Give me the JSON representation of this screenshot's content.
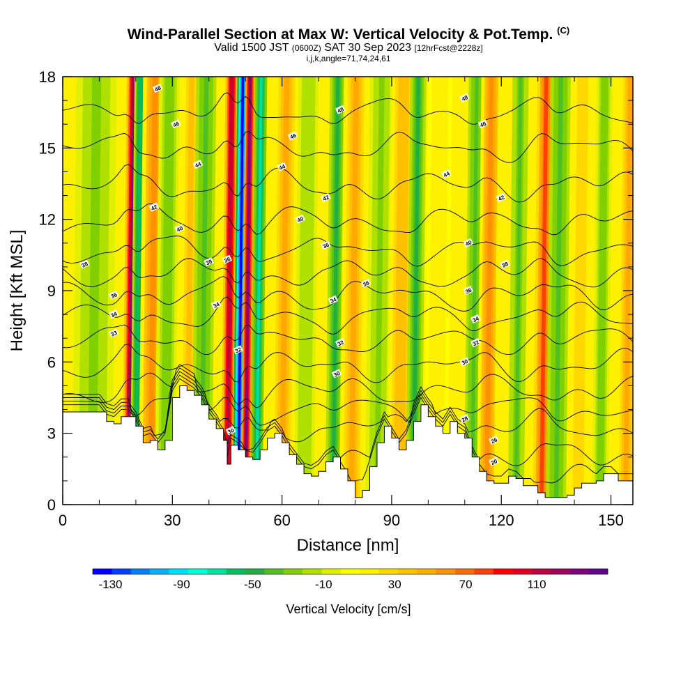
{
  "title": {
    "main": "Wind-Parallel Section at Max W: Vertical Velocity & Pot.Temp.",
    "copyright": "(C)",
    "valid_prefix": "Valid 1500 JST",
    "valid_z": "(0600Z)",
    "valid_date": "SAT 30 Sep 2023",
    "forecast": "[12hrFcst@2228z]",
    "params": "i,j,k,angle=71,74,24,61"
  },
  "chart_data": {
    "type": "heatmap",
    "xlabel": "Distance [nm]",
    "ylabel": "Height [Kft MSL]",
    "xlim": [
      0,
      156
    ],
    "ylim": [
      0,
      18
    ],
    "x_ticks": [
      "0",
      "30",
      "60",
      "90",
      "120",
      "150"
    ],
    "y_ticks": [
      "0",
      "3",
      "6",
      "9",
      "12",
      "15",
      "18"
    ],
    "colorbar": {
      "label": "Vertical Velocity [cm/s]",
      "tick_labels": [
        "-130",
        "-90",
        "-50",
        "-10",
        "30",
        "70",
        "110"
      ],
      "range": [
        -140,
        150
      ],
      "colors": [
        "#0000ff",
        "#0040ff",
        "#0080ff",
        "#00b0ff",
        "#00dcff",
        "#00ffd8",
        "#00e0a0",
        "#00c060",
        "#20b040",
        "#50c020",
        "#80d000",
        "#b0e000",
        "#e0f000",
        "#ffff00",
        "#fff000",
        "#ffd800",
        "#ffc000",
        "#ffa800",
        "#ff9000",
        "#ff6a00",
        "#ff4000",
        "#ff0000",
        "#e00020",
        "#c00040",
        "#a00060",
        "#800080",
        "#600090"
      ]
    },
    "theta_contour_labels": [
      "20",
      "26",
      "28",
      "30",
      "32",
      "34",
      "36",
      "38",
      "40",
      "42",
      "44",
      "46",
      "48"
    ],
    "velocity_bands": [
      {
        "x": 8,
        "w": 5,
        "value": -25
      },
      {
        "x": 18,
        "w": 1.6,
        "value": 120
      },
      {
        "x": 20,
        "w": 1.5,
        "value": -60
      },
      {
        "x": 24,
        "w": 3,
        "value": 60
      },
      {
        "x": 28,
        "w": 2.6,
        "value": -30
      },
      {
        "x": 34,
        "w": 3,
        "value": 35
      },
      {
        "x": 38,
        "w": 2.5,
        "value": -40
      },
      {
        "x": 45,
        "w": 1.6,
        "value": 110
      },
      {
        "x": 48,
        "w": 1.4,
        "value": -130
      },
      {
        "x": 50,
        "w": 1.2,
        "value": 130
      },
      {
        "x": 53,
        "w": 1.5,
        "value": -70
      },
      {
        "x": 60,
        "w": 3,
        "value": 45
      },
      {
        "x": 66,
        "w": 2.5,
        "value": -20
      },
      {
        "x": 74,
        "w": 2,
        "value": -50
      },
      {
        "x": 79,
        "w": 3,
        "value": 45
      },
      {
        "x": 86,
        "w": 3,
        "value": -25
      },
      {
        "x": 92,
        "w": 3,
        "value": 40
      },
      {
        "x": 96,
        "w": 2,
        "value": -45
      },
      {
        "x": 102,
        "w": 3,
        "value": 20
      },
      {
        "x": 112,
        "w": 2,
        "value": -40
      },
      {
        "x": 116,
        "w": 2.5,
        "value": 60
      },
      {
        "x": 124,
        "w": 2,
        "value": -35
      },
      {
        "x": 131,
        "w": 2.2,
        "value": 75
      },
      {
        "x": 135,
        "w": 2.5,
        "value": -40
      },
      {
        "x": 141,
        "w": 3,
        "value": 30
      },
      {
        "x": 147,
        "w": 2,
        "value": -30
      },
      {
        "x": 154,
        "w": 2.5,
        "value": 50
      }
    ],
    "terrain_kft": [
      [
        0,
        3.9
      ],
      [
        10,
        3.9
      ],
      [
        12,
        3.5
      ],
      [
        14,
        3.4
      ],
      [
        16,
        3.7
      ],
      [
        18,
        3.7
      ],
      [
        20,
        3.3
      ],
      [
        22,
        2.6
      ],
      [
        24,
        2.7
      ],
      [
        26,
        2.3
      ],
      [
        28,
        2.7
      ],
      [
        30,
        4.5
      ],
      [
        32,
        5.0
      ],
      [
        34,
        4.8
      ],
      [
        36,
        4.6
      ],
      [
        38,
        4.2
      ],
      [
        40,
        3.6
      ],
      [
        42,
        3.2
      ],
      [
        44,
        2.7
      ],
      [
        45,
        1.7
      ],
      [
        46,
        2.5
      ],
      [
        48,
        2.3
      ],
      [
        50,
        2.0
      ],
      [
        52,
        1.9
      ],
      [
        54,
        2.3
      ],
      [
        56,
        2.8
      ],
      [
        58,
        3.0
      ],
      [
        60,
        2.6
      ],
      [
        62,
        2.1
      ],
      [
        64,
        1.7
      ],
      [
        66,
        1.3
      ],
      [
        68,
        1.2
      ],
      [
        70,
        1.4
      ],
      [
        72,
        1.8
      ],
      [
        74,
        2.0
      ],
      [
        76,
        1.5
      ],
      [
        78,
        1.0
      ],
      [
        80,
        0.3
      ],
      [
        82,
        0.6
      ],
      [
        84,
        1.6
      ],
      [
        86,
        2.6
      ],
      [
        88,
        3.3
      ],
      [
        90,
        2.8
      ],
      [
        92,
        2.3
      ],
      [
        94,
        2.7
      ],
      [
        96,
        3.5
      ],
      [
        98,
        4.2
      ],
      [
        100,
        3.7
      ],
      [
        102,
        3.3
      ],
      [
        104,
        3.0
      ],
      [
        106,
        3.5
      ],
      [
        108,
        3.0
      ],
      [
        110,
        2.8
      ],
      [
        112,
        2.0
      ],
      [
        114,
        1.4
      ],
      [
        116,
        1.0
      ],
      [
        118,
        0.9
      ],
      [
        120,
        0.9
      ],
      [
        122,
        1.2
      ],
      [
        124,
        1.1
      ],
      [
        126,
        0.8
      ],
      [
        128,
        0.8
      ],
      [
        130,
        0.5
      ],
      [
        132,
        0.3
      ],
      [
        134,
        0.3
      ],
      [
        136,
        0.3
      ],
      [
        138,
        0.4
      ],
      [
        140,
        0.7
      ],
      [
        142,
        0.9
      ],
      [
        144,
        0.9
      ],
      [
        146,
        1.0
      ],
      [
        148,
        1.3
      ],
      [
        150,
        1.3
      ],
      [
        152,
        1.0
      ],
      [
        156,
        1.0
      ]
    ],
    "theta_levels_k": [
      20,
      22,
      24,
      26,
      28,
      30,
      32,
      34,
      36,
      38,
      40,
      42,
      44,
      46,
      48
    ],
    "theta_base_height_kft": [
      1.0,
      2.0,
      3.2,
      4.0,
      4.8,
      5.8,
      6.9,
      7.9,
      8.8,
      9.7,
      10.7,
      11.9,
      13.4,
      15.0,
      16.5
    ]
  }
}
